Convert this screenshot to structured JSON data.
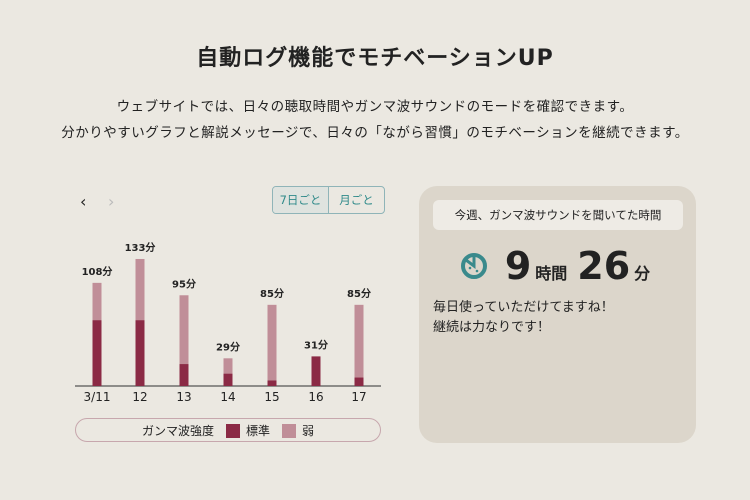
{
  "title": "自動ログ機能でモチベーションUP",
  "subtitle_lines": [
    "ウェブサイトでは、日々の聴取時間やガンマ波サウンドのモードを確認できます。",
    "分かりやすいグラフと解説メッセージで、日々の「ながら習慣」のモチベーションを継続できます。"
  ],
  "nav": {
    "prev": "‹",
    "next": "›"
  },
  "toggle": {
    "week": "7日ごと",
    "month": "月ごと"
  },
  "chart_data": {
    "type": "bar",
    "stacked": true,
    "categories": [
      "3/11",
      "12",
      "13",
      "14",
      "15",
      "16",
      "17"
    ],
    "labels": [
      "108分",
      "133分",
      "95分",
      "29分",
      "85分",
      "31分",
      "85分"
    ],
    "series": [
      {
        "name": "標準",
        "color": "#8b2a45",
        "values": [
          69,
          69,
          23,
          13,
          6,
          31,
          9
        ]
      },
      {
        "name": "弱",
        "color": "#c08e98",
        "values": [
          39,
          64,
          72,
          16,
          79,
          0,
          76
        ]
      }
    ],
    "legend_title": "ガンマ波強度"
  },
  "card": {
    "heading": "今週、ガンマ波サウンドを聞いてた時間",
    "hours": "9",
    "hours_unit": "時間",
    "minutes": "26",
    "minutes_unit": "分",
    "message_lines": [
      "毎日使っていただけてますね！",
      "継続は力なりです！"
    ],
    "accent": "#3a8a8c"
  }
}
